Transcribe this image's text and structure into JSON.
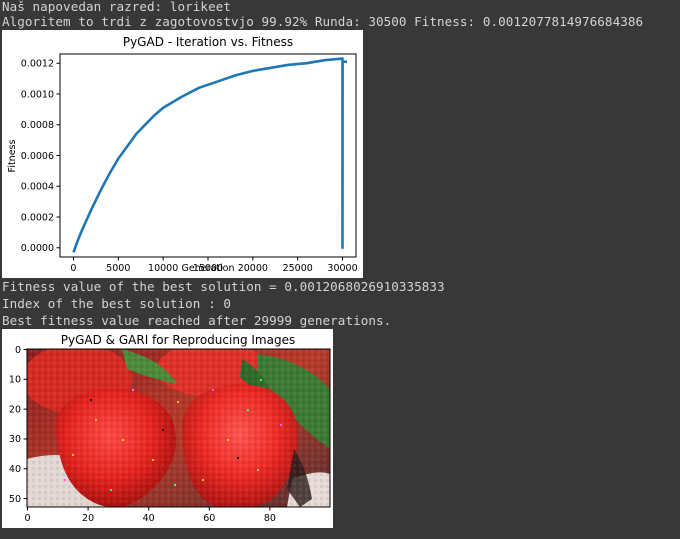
{
  "output": {
    "line1": "Naš napovedan razred: lorikeet",
    "line2": "Algoritem to trdi z zagotovostvjo 99.92% Runda: 30500 Fitness: 0.0012077814976684386",
    "line3": "Fitness value of the best solution = 0.0012068026910335833",
    "line4": "Index of the best solution : 0",
    "line5": "Best fitness value reached after 29999 generations."
  },
  "chart_data": [
    {
      "type": "line",
      "title": "PyGAD - Iteration vs. Fitness",
      "xlabel": "Generation",
      "ylabel": "Fitness",
      "xlim": [
        -1500,
        31500
      ],
      "ylim": [
        -6e-05,
        0.00126
      ],
      "xticks": [
        0,
        5000,
        10000,
        15000,
        20000,
        25000,
        30000
      ],
      "xtick_labels": [
        "0",
        "5000",
        "10000",
        "15000",
        "20000",
        "25000",
        "30000"
      ],
      "yticks": [
        0,
        0.0002,
        0.0004,
        0.0006,
        0.0008,
        0.001,
        0.0012
      ],
      "ytick_labels": [
        "0.0000",
        "0.0002",
        "0.0004",
        "0.0006",
        "0.0008",
        "0.0010",
        "0.0012"
      ],
      "grid": false,
      "color": "#1f77b4",
      "series": [
        {
          "x": [
            0,
            500,
            1000,
            2000,
            3000,
            4000,
            5000,
            6000,
            7000,
            8000,
            9000,
            10000,
            12000,
            14000,
            16000,
            18000,
            20000,
            22000,
            24000,
            26000,
            28000,
            29999,
            30000,
            30000,
            30010,
            30100,
            30500
          ],
          "y": [
            -3e-05,
            5e-05,
            0.00012,
            0.00025,
            0.00037,
            0.00048,
            0.00058,
            0.00066,
            0.00074,
            0.0008,
            0.00086,
            0.00091,
            0.00098,
            0.00104,
            0.00108,
            0.00112,
            0.00115,
            0.00117,
            0.00119,
            0.0012,
            0.00122,
            0.00123,
            0.0,
            0.0,
            0.00121,
            0.00121,
            0.00121
          ]
        }
      ]
    },
    {
      "type": "heatmap",
      "title": "PyGAD & GARI for Reproducing Images",
      "xlim": [
        0,
        100
      ],
      "ylim": [
        0,
        53
      ],
      "xticks": [
        0,
        20,
        40,
        60,
        80
      ],
      "xtick_labels": [
        "0",
        "20",
        "40",
        "60",
        "80"
      ],
      "yticks": [
        0,
        10,
        20,
        30,
        40,
        50
      ],
      "ytick_labels": [
        "0",
        "10",
        "20",
        "30",
        "40",
        "50"
      ]
    }
  ]
}
